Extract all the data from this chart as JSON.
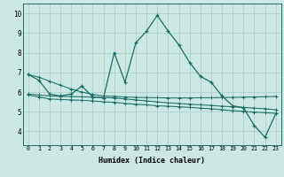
{
  "xlabel": "Humidex (Indice chaleur)",
  "x_values": [
    0,
    1,
    2,
    3,
    4,
    5,
    6,
    7,
    8,
    9,
    10,
    11,
    12,
    13,
    14,
    15,
    16,
    17,
    18,
    19,
    20,
    21,
    22,
    23
  ],
  "line1": [
    6.9,
    6.6,
    5.9,
    5.8,
    5.9,
    6.3,
    5.75,
    5.7,
    8.0,
    6.5,
    8.5,
    9.1,
    9.9,
    9.1,
    8.4,
    7.5,
    6.8,
    6.5,
    5.8,
    5.3,
    5.2,
    4.3,
    3.7,
    4.9
  ],
  "line2": [
    5.9,
    5.85,
    5.8,
    5.78,
    5.77,
    5.76,
    5.74,
    5.72,
    5.7,
    5.65,
    5.6,
    5.55,
    5.5,
    5.45,
    5.42,
    5.38,
    5.35,
    5.32,
    5.28,
    5.25,
    5.22,
    5.18,
    5.15,
    5.1
  ],
  "line3": [
    6.9,
    6.75,
    6.55,
    6.35,
    6.15,
    6.0,
    5.88,
    5.8,
    5.78,
    5.75,
    5.73,
    5.72,
    5.71,
    5.7,
    5.7,
    5.7,
    5.71,
    5.71,
    5.72,
    5.73,
    5.74,
    5.75,
    5.76,
    5.78
  ],
  "line4": [
    5.85,
    5.75,
    5.65,
    5.62,
    5.6,
    5.58,
    5.55,
    5.5,
    5.48,
    5.42,
    5.38,
    5.35,
    5.3,
    5.28,
    5.25,
    5.22,
    5.18,
    5.15,
    5.1,
    5.05,
    5.02,
    4.98,
    4.95,
    4.92
  ],
  "line_color": "#1a6e66",
  "bg_color": "#cce8e4",
  "grid_color": "#a8ccca",
  "ylim": [
    3.3,
    10.5
  ],
  "yticks": [
    4,
    5,
    6,
    7,
    8,
    9,
    10
  ]
}
